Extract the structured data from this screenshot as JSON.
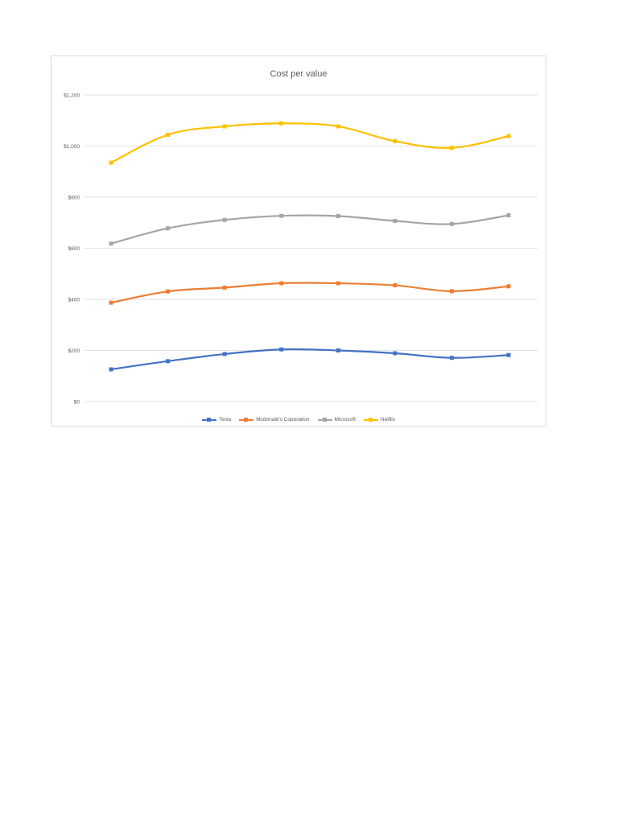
{
  "chart_data": {
    "type": "line",
    "title": "Cost per value",
    "xlabel": "",
    "ylabel": "",
    "ylim": [
      0,
      1200
    ],
    "yticks": [
      "$0",
      "$200",
      "$400",
      "$600",
      "$800",
      "$1,000",
      "$1,200"
    ],
    "ytick_values": [
      0,
      200,
      400,
      600,
      800,
      1000,
      1200
    ],
    "x": [
      1,
      2,
      3,
      4,
      5,
      6,
      7,
      8
    ],
    "grid": true,
    "legend_position": "bottom",
    "series": [
      {
        "name": "Tesla",
        "color": "#4472c4",
        "values": [
          126,
          158,
          186,
          204,
          200,
          189,
          171,
          182
        ]
      },
      {
        "name": "Mcdonald's Coporation",
        "color": "#ed7d31",
        "values": [
          387,
          431,
          446,
          463,
          463,
          455,
          432,
          451
        ]
      },
      {
        "name": "Microsoft",
        "color": "#a5a5a5",
        "values": [
          618,
          678,
          711,
          727,
          726,
          707,
          695,
          729
        ]
      },
      {
        "name": "Netflix",
        "color": "#ffc000",
        "values": [
          935,
          1044,
          1077,
          1089,
          1077,
          1019,
          993,
          1039
        ]
      }
    ]
  }
}
